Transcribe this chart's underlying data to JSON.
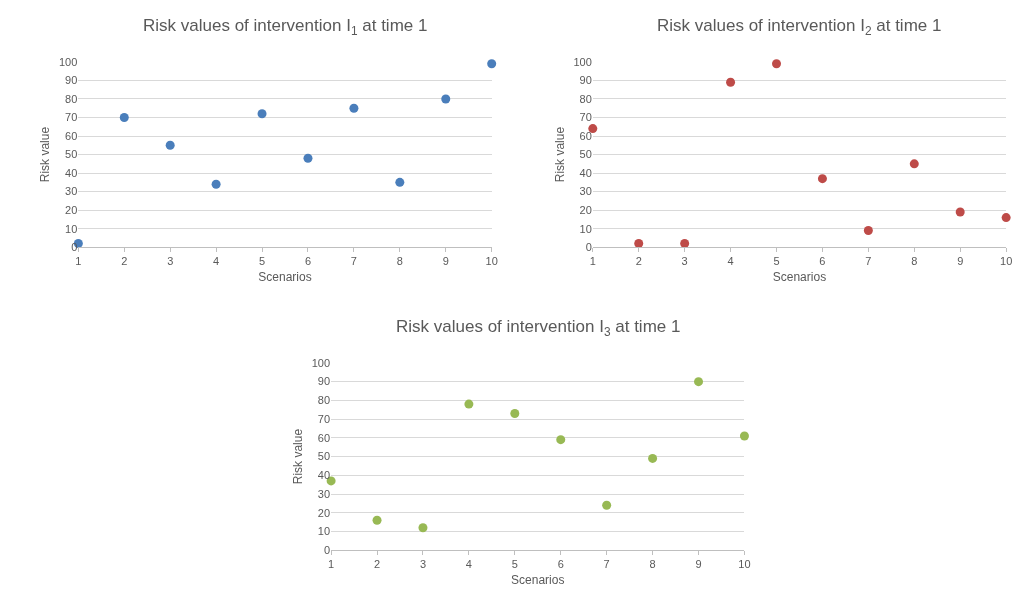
{
  "chart_data": [
    {
      "type": "scatter",
      "title": "Risk values of intervention I$_{1}$ at time 1",
      "xlabel": "Scenarios",
      "ylabel": "Risk value",
      "x": [
        1,
        2,
        3,
        4,
        5,
        6,
        7,
        8,
        9,
        10
      ],
      "series": [
        {
          "color": "#4a7ebb",
          "values": [
            2,
            70,
            55,
            34,
            72,
            48,
            75,
            35,
            80,
            99
          ]
        }
      ],
      "xlim": [
        1,
        10
      ],
      "xticks": [
        1,
        2,
        3,
        4,
        5,
        6,
        7,
        8,
        9,
        10
      ],
      "ylim": [
        0,
        100
      ],
      "yticks": [
        0,
        10,
        20,
        30,
        40,
        50,
        60,
        70,
        80,
        90,
        100
      ],
      "grid": "y",
      "marker": "circle"
    },
    {
      "type": "scatter",
      "title": "Risk values of intervention I$_{2}$ at time 1",
      "xlabel": "Scenarios",
      "ylabel": "Risk value",
      "x": [
        1,
        2,
        3,
        4,
        5,
        6,
        7,
        8,
        9,
        10
      ],
      "series": [
        {
          "color": "#be4b48",
          "values": [
            64,
            2,
            2,
            89,
            99,
            37,
            9,
            45,
            19,
            16
          ]
        }
      ],
      "xlim": [
        1,
        10
      ],
      "xticks": [
        1,
        2,
        3,
        4,
        5,
        6,
        7,
        8,
        9,
        10
      ],
      "ylim": [
        0,
        100
      ],
      "yticks": [
        0,
        10,
        20,
        30,
        40,
        50,
        60,
        70,
        80,
        90,
        100
      ],
      "grid": "y",
      "marker": "circle"
    },
    {
      "type": "scatter",
      "title": "Risk values of intervention I$_{3}$ at time 1",
      "xlabel": "Scenarios",
      "ylabel": "Risk value",
      "x": [
        1,
        2,
        3,
        4,
        5,
        6,
        7,
        8,
        9,
        10
      ],
      "series": [
        {
          "color": "#98b954",
          "values": [
            37,
            16,
            12,
            78,
            73,
            59,
            24,
            49,
            90,
            61
          ]
        }
      ],
      "xlim": [
        1,
        10
      ],
      "xticks": [
        1,
        2,
        3,
        4,
        5,
        6,
        7,
        8,
        9,
        10
      ],
      "ylim": [
        0,
        100
      ],
      "yticks": [
        0,
        10,
        20,
        30,
        40,
        50,
        60,
        70,
        80,
        90,
        100
      ],
      "grid": "y",
      "marker": "circle"
    }
  ]
}
